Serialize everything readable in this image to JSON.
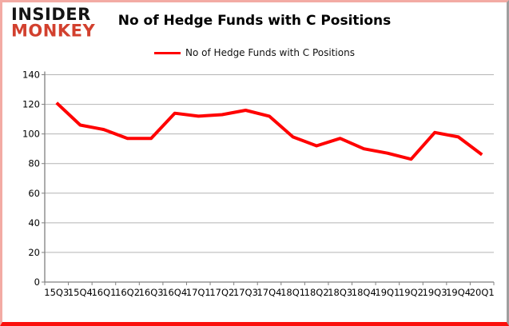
{
  "logo": {
    "line1": "INSIDER",
    "line2": "MONKEY",
    "brand_red": "#d2402e"
  },
  "header": {
    "title": "No of Hedge Funds with C Positions"
  },
  "legend": {
    "label": "No of Hedge Funds with C Positions",
    "line_color": "#ff0000"
  },
  "chart_data": {
    "type": "line",
    "title": "No of Hedge Funds with C Positions",
    "categories": [
      "15Q3",
      "15Q4",
      "16Q1",
      "16Q2",
      "16Q3",
      "16Q4",
      "17Q1",
      "17Q2",
      "17Q3",
      "17Q4",
      "18Q1",
      "18Q2",
      "18Q3",
      "18Q4",
      "19Q1",
      "19Q2",
      "19Q3",
      "19Q4",
      "20Q1"
    ],
    "series": [
      {
        "name": "No of Hedge Funds with C Positions",
        "color": "#ff0000",
        "values": [
          121,
          106,
          103,
          97,
          97,
          114,
          112,
          113,
          116,
          112,
          98,
          92,
          97,
          90,
          87,
          83,
          101,
          98,
          86
        ]
      }
    ],
    "xlabel": "",
    "ylabel": "",
    "ylim": [
      0,
      140
    ],
    "ytick_step": 20,
    "grid": "horizontal",
    "gridline_color": "#b4b4b4",
    "axis_color": "#808080",
    "legend_position": "top-center"
  },
  "frame": {
    "border_top_left_color": "#f3aba4",
    "border_bottom_color": "#fb100c",
    "border_right_color": "#9f9f9f"
  }
}
